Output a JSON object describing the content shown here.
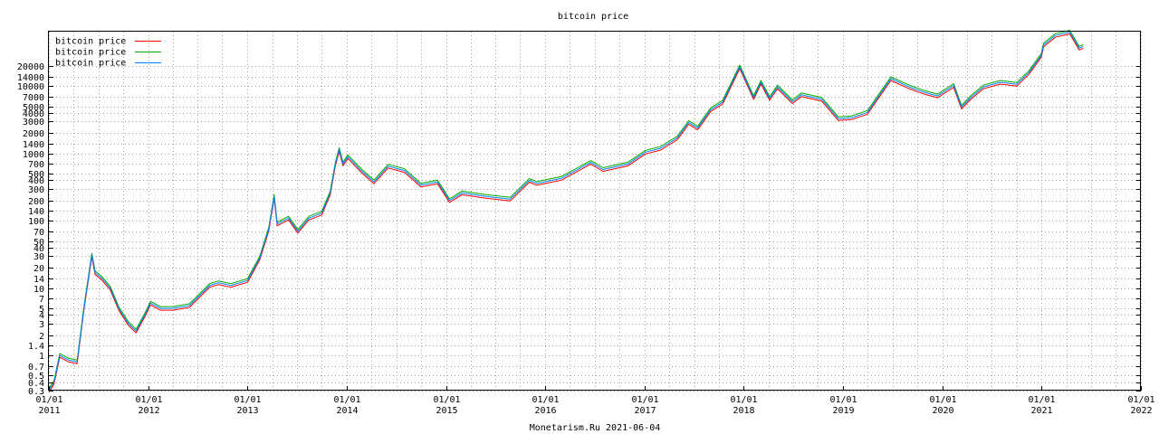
{
  "chart_data": {
    "type": "line",
    "title": "bitcoin price",
    "footer": "Monetarism.Ru 2021-06-04",
    "y_scale": "log",
    "ylim": [
      0.3,
      65000
    ],
    "xlim": [
      "2011-01-01",
      "2022-01-01"
    ],
    "grid": true,
    "legend_position": "top-left",
    "y_ticks": [
      0.3,
      0.4,
      0.5,
      0.7,
      1,
      1.4,
      2,
      3,
      4,
      5,
      7,
      10,
      14,
      20,
      30,
      40,
      50,
      70,
      100,
      140,
      200,
      300,
      400,
      500,
      700,
      1000,
      1400,
      2000,
      3000,
      4000,
      5000,
      7000,
      10000,
      14000,
      20000
    ],
    "x_ticks": [
      {
        "date": "2011-01-01",
        "label1": "01/01",
        "label2": "2011"
      },
      {
        "date": "2012-01-01",
        "label1": "01/01",
        "label2": "2012"
      },
      {
        "date": "2013-01-01",
        "label1": "01/01",
        "label2": "2013"
      },
      {
        "date": "2014-01-01",
        "label1": "01/01",
        "label2": "2014"
      },
      {
        "date": "2015-01-01",
        "label1": "01/01",
        "label2": "2015"
      },
      {
        "date": "2016-01-01",
        "label1": "01/01",
        "label2": "2016"
      },
      {
        "date": "2017-01-01",
        "label1": "01/01",
        "label2": "2017"
      },
      {
        "date": "2018-01-01",
        "label1": "01/01",
        "label2": "2018"
      },
      {
        "date": "2019-01-01",
        "label1": "01/01",
        "label2": "2019"
      },
      {
        "date": "2020-01-01",
        "label1": "01/01",
        "label2": "2020"
      },
      {
        "date": "2021-01-01",
        "label1": "01/01",
        "label2": "2021"
      },
      {
        "date": "2022-01-01",
        "label1": "01/01",
        "label2": "2022"
      }
    ],
    "series": [
      {
        "name": "bitcoin price",
        "color": "#ff0000"
      },
      {
        "name": "bitcoin price",
        "color": "#00aa00"
      },
      {
        "name": "bitcoin price",
        "color": "#0080ff"
      }
    ],
    "x": [
      "2011-01-01",
      "2011-01-20",
      "2011-02-10",
      "2011-03-15",
      "2011-04-15",
      "2011-05-10",
      "2011-06-08",
      "2011-06-20",
      "2011-07-15",
      "2011-08-15",
      "2011-09-15",
      "2011-10-20",
      "2011-11-18",
      "2011-12-20",
      "2012-01-10",
      "2012-02-15",
      "2012-04-01",
      "2012-06-01",
      "2012-08-15",
      "2012-09-15",
      "2012-11-01",
      "2013-01-01",
      "2013-02-15",
      "2013-03-20",
      "2013-04-09",
      "2013-04-20",
      "2013-06-01",
      "2013-07-05",
      "2013-08-15",
      "2013-10-01",
      "2013-11-01",
      "2013-11-20",
      "2013-12-04",
      "2013-12-18",
      "2014-01-05",
      "2014-02-25",
      "2014-04-11",
      "2014-06-02",
      "2014-08-01",
      "2014-10-01",
      "2014-12-01",
      "2015-01-14",
      "2015-03-01",
      "2015-06-01",
      "2015-08-25",
      "2015-11-04",
      "2015-12-01",
      "2016-03-01",
      "2016-06-17",
      "2016-08-01",
      "2016-11-01",
      "2017-01-04",
      "2017-03-01",
      "2017-05-01",
      "2017-06-12",
      "2017-07-15",
      "2017-09-01",
      "2017-10-15",
      "2017-12-17",
      "2018-02-06",
      "2018-03-05",
      "2018-04-06",
      "2018-05-05",
      "2018-06-29",
      "2018-08-01",
      "2018-10-15",
      "2018-12-15",
      "2019-02-01",
      "2019-04-01",
      "2019-06-26",
      "2019-09-01",
      "2019-10-25",
      "2019-12-15",
      "2020-02-12",
      "2020-03-12",
      "2020-04-15",
      "2020-06-01",
      "2020-08-01",
      "2020-10-01",
      "2020-11-15",
      "2020-12-31",
      "2021-01-08",
      "2021-02-20",
      "2021-04-14",
      "2021-05-19",
      "2021-06-03"
    ],
    "values": [
      0.3,
      0.4,
      1.0,
      0.85,
      0.8,
      5,
      31,
      17,
      14,
      10,
      5,
      3,
      2.3,
      4,
      6,
      5,
      5,
      5.5,
      11,
      12,
      11,
      13,
      28,
      75,
      230,
      90,
      110,
      70,
      110,
      130,
      260,
      700,
      1150,
      700,
      900,
      550,
      380,
      650,
      560,
      340,
      380,
      200,
      260,
      230,
      210,
      400,
      360,
      430,
      740,
      580,
      700,
      1050,
      1200,
      1700,
      2900,
      2400,
      4500,
      5800,
      19500,
      6800,
      11500,
      6600,
      9800,
      5900,
      7500,
      6400,
      3300,
      3400,
      4100,
      13000,
      9800,
      8200,
      7200,
      10300,
      4900,
      6800,
      9800,
      11500,
      10700,
      16000,
      29000,
      41000,
      57000,
      64000,
      37000,
      39000
    ]
  }
}
